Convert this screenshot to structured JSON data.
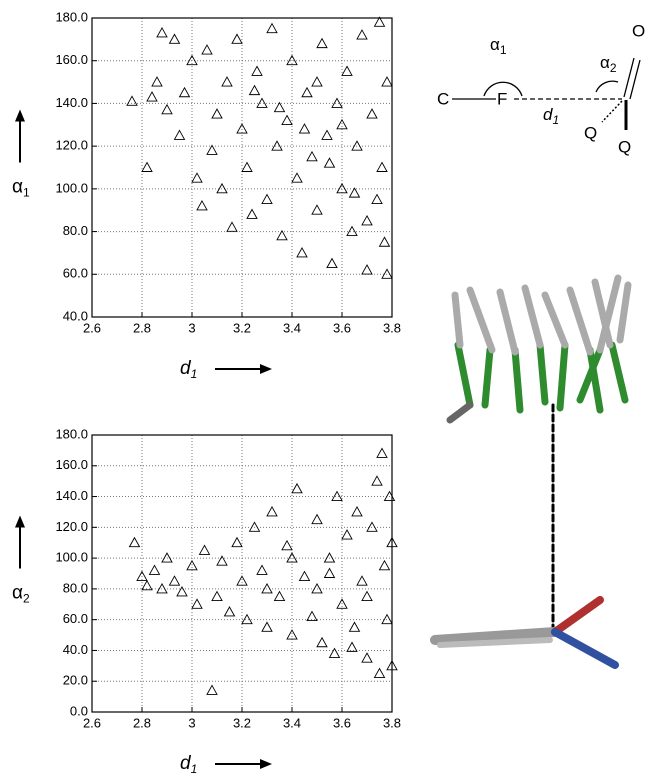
{
  "chart_data": [
    {
      "type": "scatter",
      "xlabel": {
        "text": "d",
        "subscript": "1"
      },
      "ylabel": {
        "text": "α",
        "subscript": "1"
      },
      "xlim": [
        2.6,
        3.8
      ],
      "ylim": [
        40,
        180
      ],
      "xticks": [
        2.6,
        2.8,
        3.0,
        3.2,
        3.4,
        3.6,
        3.8
      ],
      "yticks": [
        {
          "value": 40,
          "label": "40.0"
        },
        {
          "value": 60,
          "label": "60.0"
        },
        {
          "value": 80,
          "label": "80.0"
        },
        {
          "value": 100,
          "label": "100.0"
        },
        {
          "value": 120,
          "label": "120.0"
        },
        {
          "value": 140,
          "label": "140.0"
        },
        {
          "value": 160,
          "label": "160.0"
        },
        {
          "value": 180,
          "label": "180.0"
        }
      ],
      "grid": true,
      "marker": "triangle",
      "color": "#000000",
      "x": [
        2.76,
        2.82,
        2.84,
        2.86,
        2.88,
        2.9,
        2.93,
        2.95,
        2.97,
        3.0,
        3.02,
        3.04,
        3.06,
        3.08,
        3.1,
        3.12,
        3.14,
        3.16,
        3.18,
        3.2,
        3.22,
        3.24,
        3.26,
        3.28,
        3.3,
        3.32,
        3.34,
        3.36,
        3.38,
        3.4,
        3.42,
        3.44,
        3.46,
        3.48,
        3.5,
        3.52,
        3.54,
        3.56,
        3.58,
        3.6,
        3.62,
        3.64,
        3.66,
        3.68,
        3.7,
        3.72,
        3.74,
        3.75,
        3.76,
        3.77,
        3.78,
        3.78,
        3.35,
        3.55,
        3.65,
        3.45,
        3.25,
        3.6,
        3.7,
        3.5
      ],
      "y": [
        141,
        110,
        143,
        150,
        173,
        137,
        170,
        125,
        145,
        160,
        105,
        92,
        165,
        118,
        135,
        100,
        150,
        82,
        170,
        128,
        110,
        88,
        155,
        140,
        95,
        175,
        120,
        78,
        132,
        160,
        105,
        70,
        145,
        115,
        90,
        168,
        125,
        65,
        140,
        100,
        155,
        80,
        120,
        172,
        62,
        135,
        95,
        178,
        110,
        75,
        150,
        60,
        138,
        112,
        98,
        128,
        146,
        130,
        85,
        150
      ]
    },
    {
      "type": "scatter",
      "xlabel": {
        "text": "d",
        "subscript": "1"
      },
      "ylabel": {
        "text": "α",
        "subscript": "2"
      },
      "xlim": [
        2.6,
        3.8
      ],
      "ylim": [
        0,
        180
      ],
      "xticks": [
        2.6,
        2.8,
        3.0,
        3.2,
        3.4,
        3.6,
        3.8
      ],
      "yticks": [
        {
          "value": 0,
          "label": "0.0"
        },
        {
          "value": 20,
          "label": "20.0"
        },
        {
          "value": 40,
          "label": "40.0"
        },
        {
          "value": 60,
          "label": "60.0"
        },
        {
          "value": 80,
          "label": "80.0"
        },
        {
          "value": 100,
          "label": "100.0"
        },
        {
          "value": 120,
          "label": "120.0"
        },
        {
          "value": 140,
          "label": "140.0"
        },
        {
          "value": 160,
          "label": "160.0"
        },
        {
          "value": 180,
          "label": "180.0"
        }
      ],
      "grid": true,
      "marker": "triangle",
      "color": "#000000",
      "x": [
        2.77,
        2.8,
        2.82,
        2.85,
        2.88,
        2.9,
        2.93,
        2.96,
        3.0,
        3.02,
        3.05,
        3.08,
        3.1,
        3.12,
        3.15,
        3.18,
        3.2,
        3.22,
        3.25,
        3.28,
        3.3,
        3.32,
        3.35,
        3.38,
        3.4,
        3.42,
        3.45,
        3.48,
        3.5,
        3.52,
        3.55,
        3.57,
        3.58,
        3.6,
        3.62,
        3.64,
        3.66,
        3.68,
        3.7,
        3.72,
        3.74,
        3.75,
        3.76,
        3.77,
        3.78,
        3.79,
        3.8,
        3.8,
        3.5,
        3.65,
        3.4,
        3.3,
        3.55,
        3.7
      ],
      "y": [
        110,
        88,
        82,
        92,
        80,
        100,
        85,
        78,
        95,
        70,
        105,
        14,
        75,
        98,
        65,
        110,
        85,
        60,
        120,
        92,
        55,
        130,
        75,
        108,
        50,
        145,
        88,
        62,
        125,
        45,
        100,
        38,
        140,
        70,
        115,
        42,
        130,
        85,
        35,
        120,
        150,
        25,
        168,
        95,
        60,
        140,
        30,
        110,
        80,
        55,
        100,
        80,
        90,
        75
      ]
    }
  ],
  "diagram": {
    "left_atom": "C",
    "fluorine": "F",
    "distance": {
      "text": "d",
      "subscript": "1"
    },
    "angle1": {
      "text": "α",
      "subscript": "1"
    },
    "angle2": {
      "text": "α",
      "subscript": "2"
    },
    "oxygen": "O",
    "sub1": "Q",
    "sub2": "Q"
  }
}
